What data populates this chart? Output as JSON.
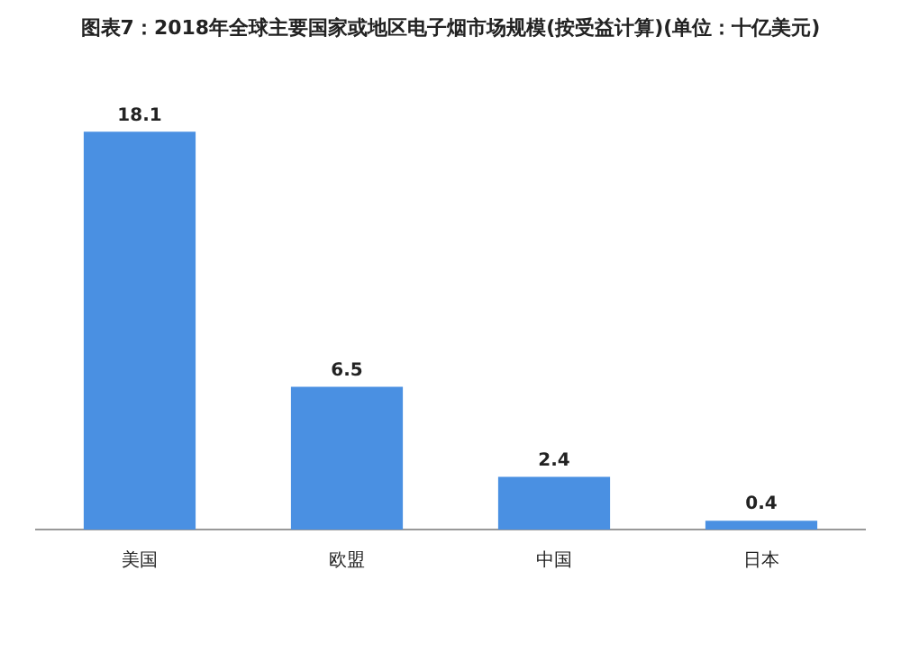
{
  "chart_data": {
    "type": "bar",
    "title": "图表7：2018年全球主要国家或地区电子烟市场规模(按受益计算)(单位：十亿美元)",
    "categories": [
      "美国",
      "欧盟",
      "中国",
      "日本"
    ],
    "values": [
      18.1,
      6.5,
      2.4,
      0.4
    ],
    "color": "#4a90e2",
    "data_labels": true
  }
}
